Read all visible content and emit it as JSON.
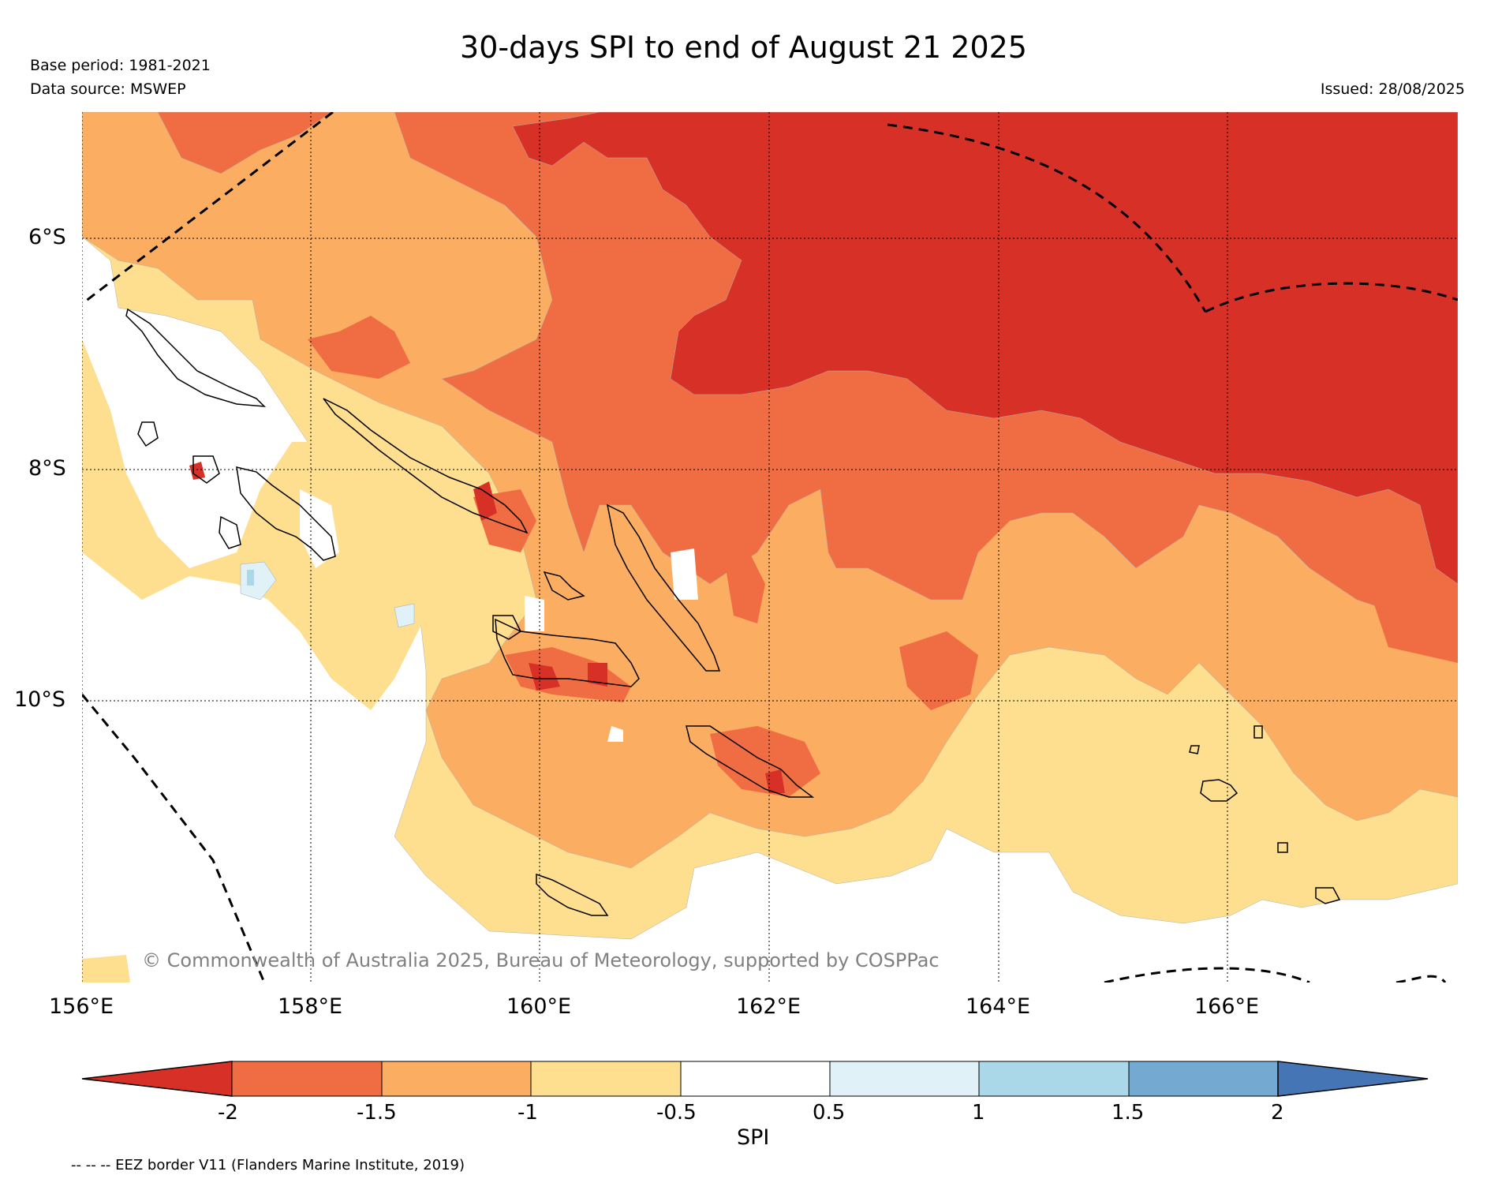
{
  "header": {
    "title": "30-days SPI to end of August 21 2025",
    "base_period": "Base period: 1981-2021",
    "data_source": "Data source: MSWEP",
    "issued": "Issued: 28/08/2025"
  },
  "map": {
    "copyright": "© Commonwealth of Australia 2025, Bureau of Meteorology, supported by COSPPac",
    "lat_labels": [
      "6°S",
      "8°S",
      "10°S"
    ],
    "lon_labels": [
      "156°E",
      "158°E",
      "160°E",
      "162°E",
      "164°E",
      "166°E"
    ],
    "extent": {
      "lon_min": 156,
      "lon_max": 168,
      "lat_north": -5,
      "lat_south": -12.4
    }
  },
  "colorbar": {
    "title": "SPI",
    "ticks": [
      "-2",
      "-1.5",
      "-1",
      "-0.5",
      "0.5",
      "1",
      "1.5",
      "2"
    ],
    "colors": {
      "below_-2": "#d73027",
      "-2_-1.5": "#f06c42",
      "-1.5_-1": "#fbad62",
      "-1_-0.5": "#fede8f",
      "-0.5_0.5": "#ffffff",
      "0.5_1": "#e0f2f7",
      "1_1.5": "#abd8e8",
      "1.5_2": "#74aad1",
      "above_2": "#4575b4"
    }
  },
  "footnote": "-- -- -- EEZ border V11 (Flanders Marine Institute, 2019)"
}
